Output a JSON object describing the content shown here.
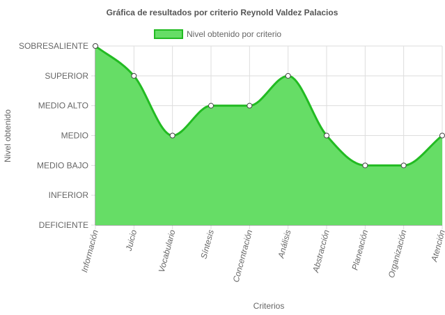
{
  "chart_data": {
    "type": "area",
    "title": "Gráfica de resultados por criterio Reynold Valdez Palacios",
    "xlabel": "Criterios",
    "ylabel": "Nivel obtenido",
    "y_levels": [
      "DEFICIENTE",
      "INFERIOR",
      "MEDIO BAJO",
      "MEDIO",
      "MEDIO ALTO",
      "SUPERIOR",
      "SOBRESALIENTE"
    ],
    "categories": [
      "Información",
      "Juicio",
      "Vocabulario",
      "Síntesis",
      "Concentración",
      "Análisis",
      "Abstracción",
      "Planeación",
      "Organización",
      "Atención"
    ],
    "series": [
      {
        "name": "Nivel obtenido por criterio",
        "values": [
          "SOBRESALIENTE",
          "SUPERIOR",
          "MEDIO",
          "MEDIO ALTO",
          "MEDIO ALTO",
          "SUPERIOR",
          "MEDIO",
          "MEDIO BAJO",
          "MEDIO BAJO",
          "MEDIO"
        ]
      }
    ],
    "grid": true,
    "legend_position": "top",
    "colors": {
      "fill": "#66dd66",
      "line": "#22bb22",
      "point_fill": "#ffffff",
      "point_stroke": "#444444",
      "grid": "#dddddd",
      "axis": "#666666"
    }
  }
}
